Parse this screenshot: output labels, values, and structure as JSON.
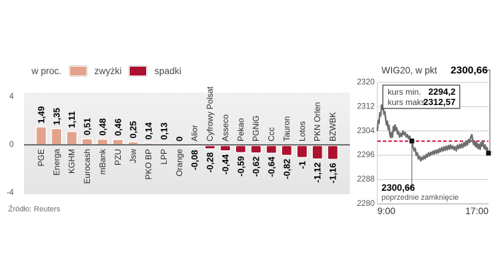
{
  "legend": {
    "unit_label": "w proc.",
    "up_label": "zwyżki",
    "down_label": "spadki"
  },
  "source": "Źródło: Reuters",
  "colors": {
    "up": "#e2a28c",
    "down": "#ae1130",
    "panel_bg_top": "#f1f1f1",
    "panel_bg_bottom": "#e5e5e5",
    "axis_line": "#6d6d6d",
    "grid": "#c9c9c9",
    "line": "#6e6e6e",
    "prev_close_line": "#d11039",
    "marker": "#111111",
    "tick_text": "#555555",
    "name_text": "#2b2b2b",
    "value_text": "#000000"
  },
  "chart_data": [
    {
      "type": "bar",
      "title": "w proc.",
      "categories": [
        "PGE",
        "Energa",
        "KGHM",
        "Eurocash",
        "mBank",
        "PZU",
        "Jsw",
        "PKO BP",
        "LPP",
        "Orange",
        "Alior",
        "Cyfrowy Polsat",
        "Asseco",
        "Pekao",
        "PGNiG",
        "Ccc",
        "Tauron",
        "Lotos",
        "PKN Orlen",
        "BZWBK"
      ],
      "values": [
        1.49,
        1.35,
        1.11,
        0.51,
        0.48,
        0.46,
        0.25,
        0.14,
        0.13,
        0,
        -0.08,
        -0.28,
        -0.44,
        -0.59,
        -0.62,
        -0.64,
        -0.82,
        -1,
        -1.12,
        -1.16
      ],
      "value_labels": [
        "1,49",
        "1,35",
        "1,11",
        "0,51",
        "0,48",
        "0,46",
        "0,25",
        "0,14",
        "0,13",
        "0",
        "-0,08",
        "-0,28",
        "-0,44",
        "-0,59",
        "-0,62",
        "-0,64",
        "-0,82",
        "-1",
        "-1,12",
        "-1,16"
      ],
      "ylim": [
        -4,
        4
      ],
      "yticks": [
        {
          "v": 4,
          "label": "4"
        },
        {
          "v": 0,
          "label": "0"
        },
        {
          "v": -4,
          "label": "-4"
        }
      ],
      "grid": false,
      "legend_position": "top"
    },
    {
      "type": "line",
      "title": "WIG20, w pkt",
      "last_value_label": "2300,66",
      "info_box": {
        "min_label": "kurs min.",
        "min_value": "2294,2",
        "max_label": "kurs maks.",
        "max_value": "2312,57"
      },
      "prev_close": {
        "value": 2300.66,
        "label": "2300,66",
        "caption": "poprzednie zamknięcie"
      },
      "ylim": [
        2280,
        2320
      ],
      "yticks": [
        {
          "v": 2320,
          "label": "2320"
        },
        {
          "v": 2312,
          "label": "2312"
        },
        {
          "v": 2304,
          "label": "2304"
        },
        {
          "v": 2296,
          "label": "2296"
        },
        {
          "v": 2288,
          "label": "2288"
        },
        {
          "v": 2280,
          "label": "2280"
        }
      ],
      "xticks": [
        "9:00",
        "17:00"
      ],
      "grid": true,
      "series": [
        {
          "name": "WIG20",
          "points": [
            [
              0.0,
              2304.2
            ],
            [
              0.008,
              2307.5
            ],
            [
              0.015,
              2306.5
            ],
            [
              0.022,
              2310.0
            ],
            [
              0.03,
              2309.0
            ],
            [
              0.038,
              2312.57
            ],
            [
              0.045,
              2311.2
            ],
            [
              0.052,
              2312.0
            ],
            [
              0.06,
              2309.5
            ],
            [
              0.068,
              2310.3
            ],
            [
              0.075,
              2308.0
            ],
            [
              0.082,
              2306.0
            ],
            [
              0.09,
              2307.2
            ],
            [
              0.098,
              2304.5
            ],
            [
              0.105,
              2305.8
            ],
            [
              0.112,
              2303.0
            ],
            [
              0.12,
              2301.8
            ],
            [
              0.128,
              2303.5
            ],
            [
              0.135,
              2302.0
            ],
            [
              0.145,
              2305.5
            ],
            [
              0.152,
              2304.0
            ],
            [
              0.16,
              2306.0
            ],
            [
              0.168,
              2304.2
            ],
            [
              0.175,
              2305.0
            ],
            [
              0.182,
              2303.0
            ],
            [
              0.19,
              2303.8
            ],
            [
              0.2,
              2302.0
            ],
            [
              0.21,
              2303.2
            ],
            [
              0.22,
              2302.2
            ],
            [
              0.23,
              2304.0
            ],
            [
              0.24,
              2302.8
            ],
            [
              0.25,
              2303.5
            ],
            [
              0.26,
              2302.0
            ],
            [
              0.27,
              2302.8
            ],
            [
              0.28,
              2301.5
            ],
            [
              0.29,
              2302.3
            ],
            [
              0.3,
              2301.0
            ],
            [
              0.31,
              2300.7
            ],
            [
              0.32,
              2299.0
            ],
            [
              0.33,
              2297.5
            ],
            [
              0.34,
              2298.3
            ],
            [
              0.35,
              2296.0
            ],
            [
              0.36,
              2296.8
            ],
            [
              0.37,
              2294.8
            ],
            [
              0.38,
              2295.6
            ],
            [
              0.39,
              2294.2
            ],
            [
              0.4,
              2295.3
            ],
            [
              0.41,
              2294.6
            ],
            [
              0.42,
              2295.8
            ],
            [
              0.43,
              2294.9
            ],
            [
              0.44,
              2296.3
            ],
            [
              0.45,
              2295.4
            ],
            [
              0.46,
              2296.8
            ],
            [
              0.47,
              2295.8
            ],
            [
              0.48,
              2297.0
            ],
            [
              0.49,
              2296.2
            ],
            [
              0.5,
              2297.3
            ],
            [
              0.51,
              2296.4
            ],
            [
              0.52,
              2297.6
            ],
            [
              0.53,
              2296.6
            ],
            [
              0.54,
              2297.8
            ],
            [
              0.55,
              2296.8
            ],
            [
              0.56,
              2298.2
            ],
            [
              0.57,
              2297.2
            ],
            [
              0.58,
              2298.5
            ],
            [
              0.59,
              2297.4
            ],
            [
              0.6,
              2298.8
            ],
            [
              0.61,
              2297.6
            ],
            [
              0.62,
              2299.0
            ],
            [
              0.63,
              2297.8
            ],
            [
              0.64,
              2299.2
            ],
            [
              0.65,
              2298.0
            ],
            [
              0.66,
              2299.4
            ],
            [
              0.67,
              2298.2
            ],
            [
              0.68,
              2299.0
            ],
            [
              0.69,
              2297.8
            ],
            [
              0.7,
              2298.8
            ],
            [
              0.71,
              2297.5
            ],
            [
              0.72,
              2299.3
            ],
            [
              0.73,
              2298.2
            ],
            [
              0.74,
              2299.6
            ],
            [
              0.75,
              2298.4
            ],
            [
              0.76,
              2299.8
            ],
            [
              0.77,
              2298.6
            ],
            [
              0.78,
              2300.2
            ],
            [
              0.79,
              2299.0
            ],
            [
              0.8,
              2300.6
            ],
            [
              0.81,
              2299.4
            ],
            [
              0.82,
              2301.2
            ],
            [
              0.83,
              2300.2
            ],
            [
              0.84,
              2302.0
            ],
            [
              0.85,
              2302.8
            ],
            [
              0.858,
              2301.0
            ],
            [
              0.865,
              2299.6
            ],
            [
              0.872,
              2300.8
            ],
            [
              0.88,
              2299.0
            ],
            [
              0.888,
              2300.4
            ],
            [
              0.895,
              2298.6
            ],
            [
              0.902,
              2299.8
            ],
            [
              0.91,
              2298.2
            ],
            [
              0.918,
              2299.6
            ],
            [
              0.925,
              2298.0
            ],
            [
              0.932,
              2300.2
            ],
            [
              0.94,
              2299.0
            ],
            [
              0.948,
              2300.8
            ],
            [
              0.955,
              2299.2
            ],
            [
              0.962,
              2298.2
            ],
            [
              0.97,
              2299.4
            ],
            [
              0.978,
              2297.8
            ],
            [
              0.985,
              2298.6
            ],
            [
              1.0,
              2296.7
            ]
          ]
        }
      ],
      "markers": [
        [
          0.31,
          2300.7
        ],
        [
          1.0,
          2296.7
        ]
      ]
    }
  ]
}
